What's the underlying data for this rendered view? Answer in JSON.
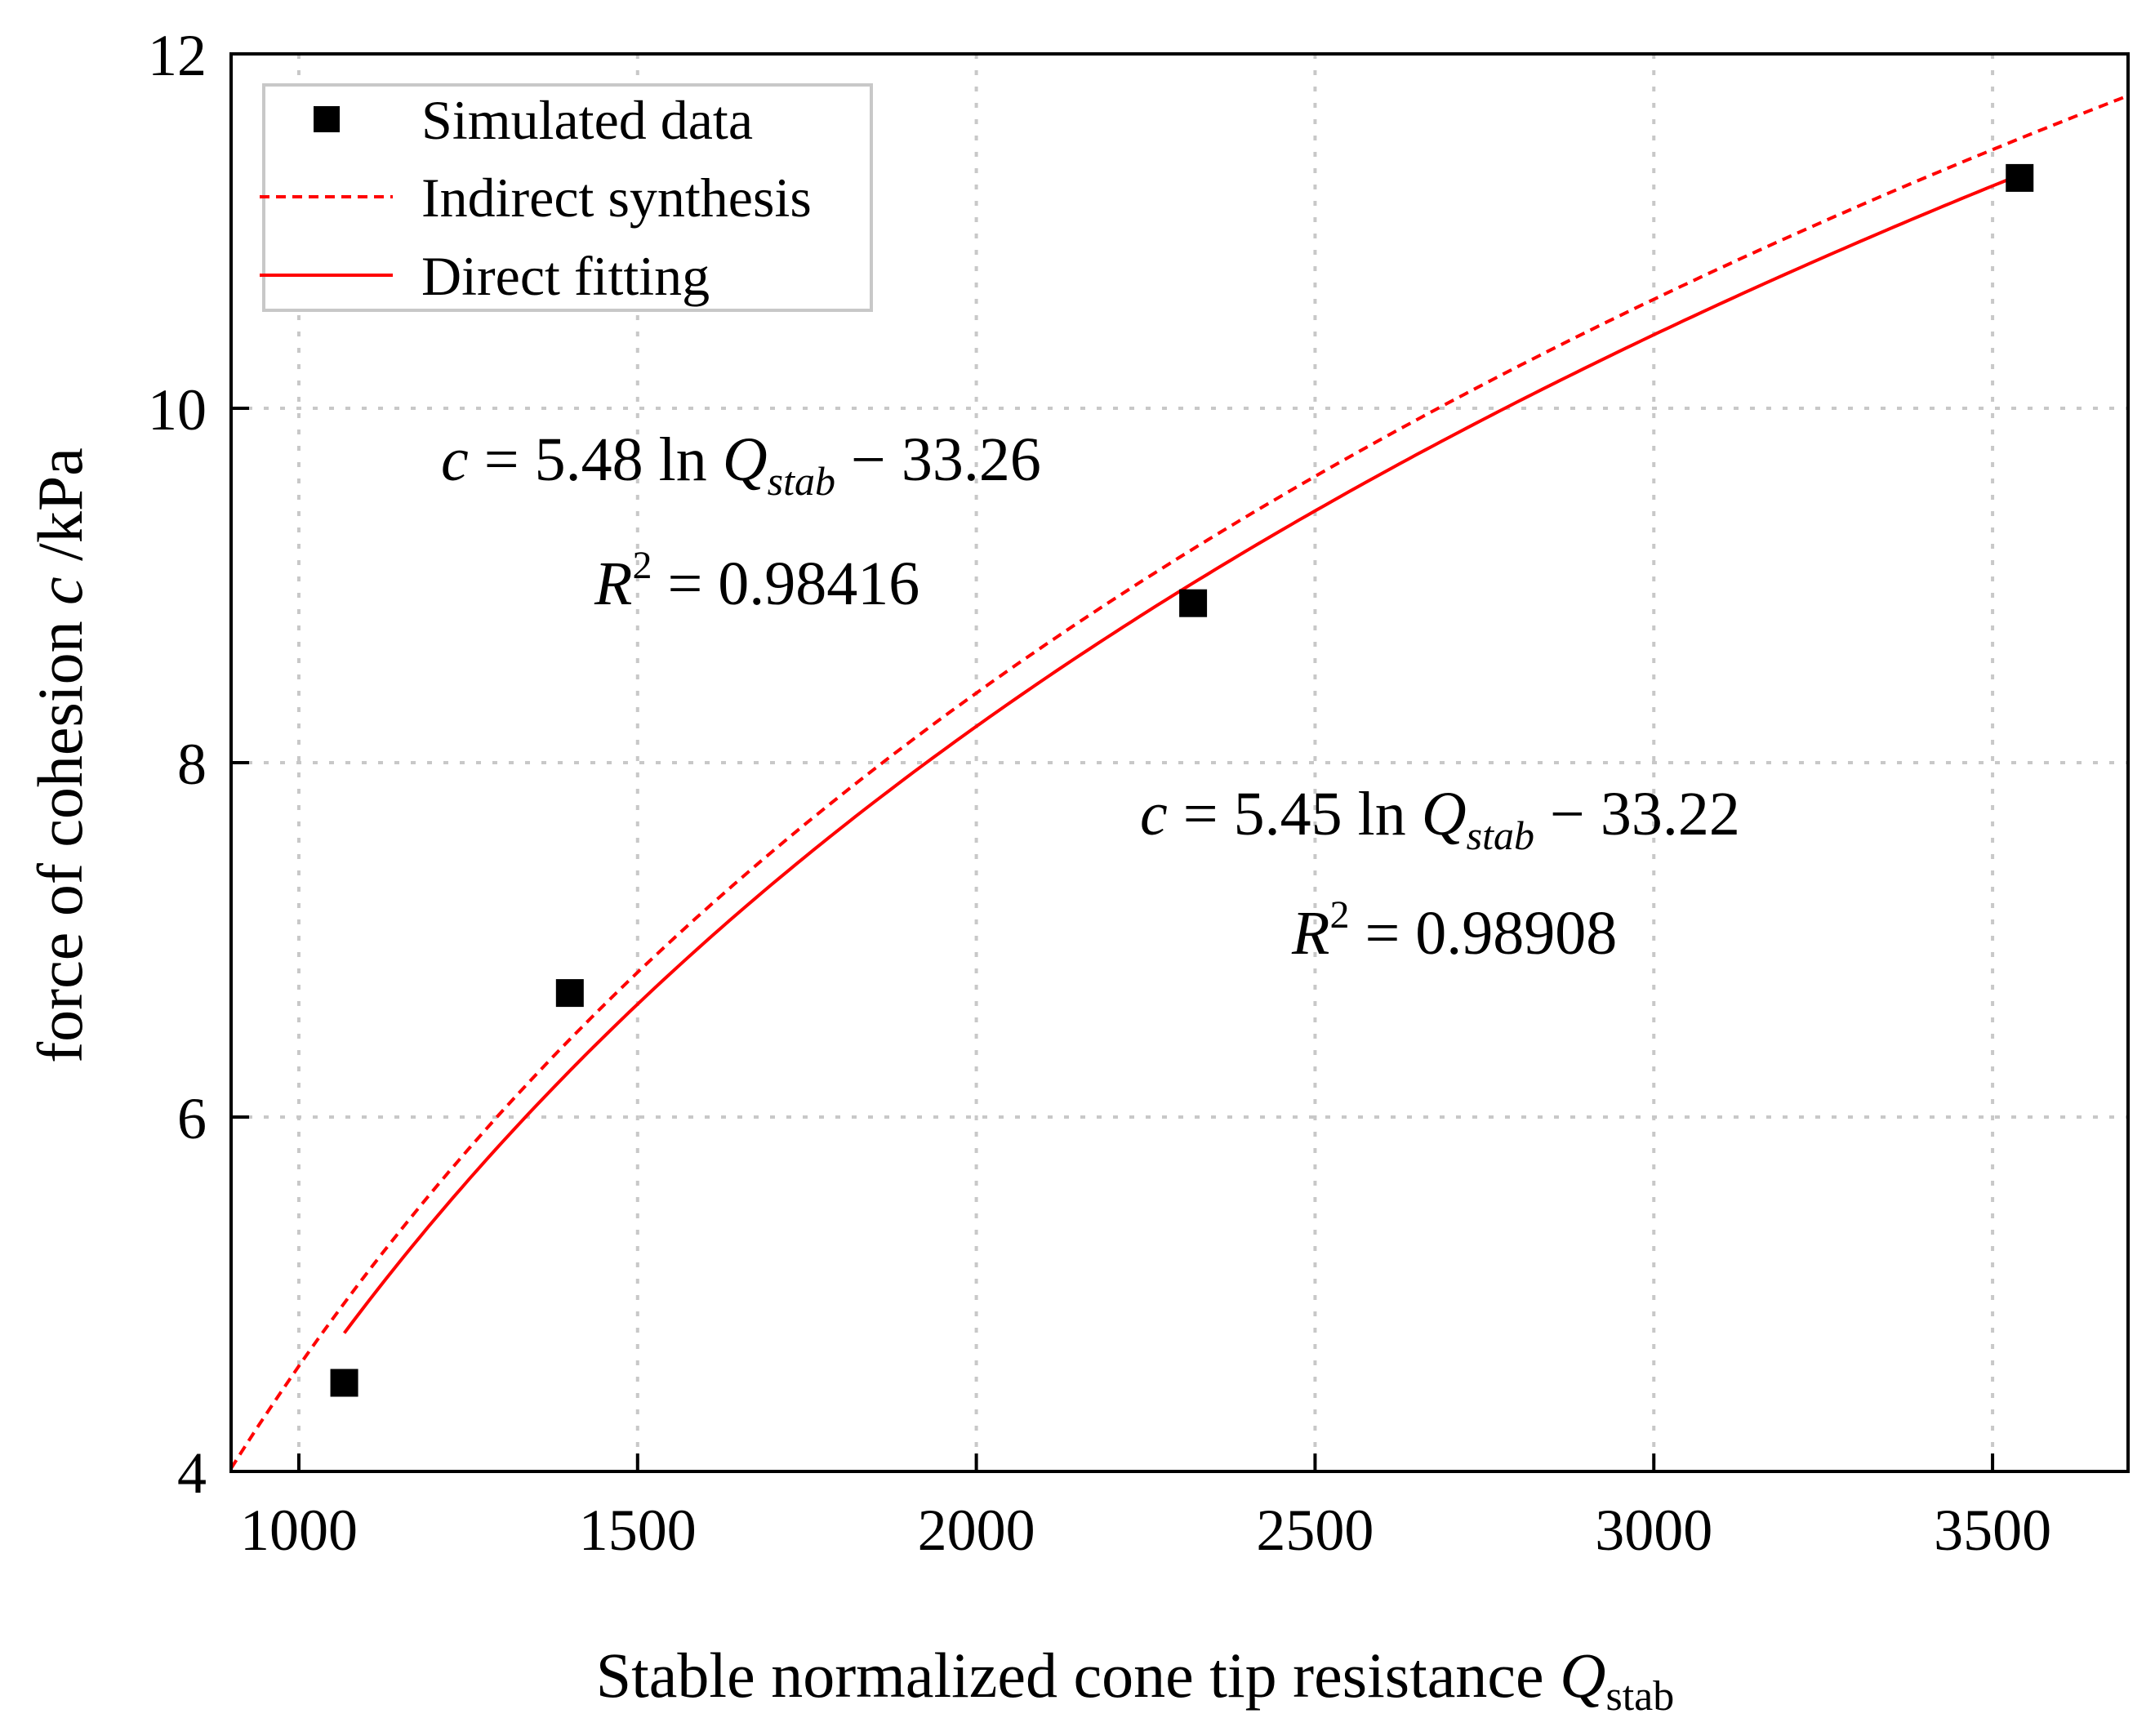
{
  "chart_data": {
    "type": "scatter",
    "title": "",
    "xlabel": "Stable normalized cone tip resistance ",
    "xlabel_symbol": "Q",
    "xlabel_subscript": "stab",
    "ylabel_prefix": "force of cohesion ",
    "ylabel_symbol": "c",
    "ylabel_suffix": " /kPa",
    "xlim": [
      900,
      3700
    ],
    "ylim": [
      4,
      12
    ],
    "xticks": [
      1000,
      1500,
      2000,
      2500,
      3000,
      3500
    ],
    "yticks": [
      4,
      6,
      8,
      10,
      12
    ],
    "grid": true,
    "legend_position": "top-left",
    "series": [
      {
        "name": "Simulated data",
        "kind": "scatter",
        "marker": "square",
        "color": "#000000",
        "x": [
          1067,
          1400,
          2320,
          3540
        ],
        "y": [
          4.5,
          6.7,
          8.9,
          11.3
        ]
      },
      {
        "name": "Indirect synthesis",
        "kind": "line",
        "style": "dashed",
        "color": "#ff0000",
        "a": 5.48,
        "b": -33.26,
        "x_range": [
          900,
          3700
        ]
      },
      {
        "name": "Direct fitting",
        "kind": "line",
        "style": "solid",
        "color": "#ff0000",
        "a": 5.45,
        "b": -33.22,
        "x_range": [
          1067,
          3540
        ]
      }
    ],
    "annotations": [
      {
        "id": "eq1",
        "lhs": "c",
        "coef": " = 5.48 ",
        "ln": "ln ",
        "var": "Q",
        "sub": "stab",
        "rest": " − 33.26",
        "r2_symbol": "R",
        "r2_sup": "2",
        "r2_value": " = 0.98416"
      },
      {
        "id": "eq2",
        "lhs": "c",
        "coef": " = 5.45 ",
        "ln": "ln ",
        "var": "Q",
        "sub": "stab",
        "rest": " − 33.22",
        "r2_symbol": "R",
        "r2_sup": "2",
        "r2_value": " = 0.98908"
      }
    ]
  }
}
